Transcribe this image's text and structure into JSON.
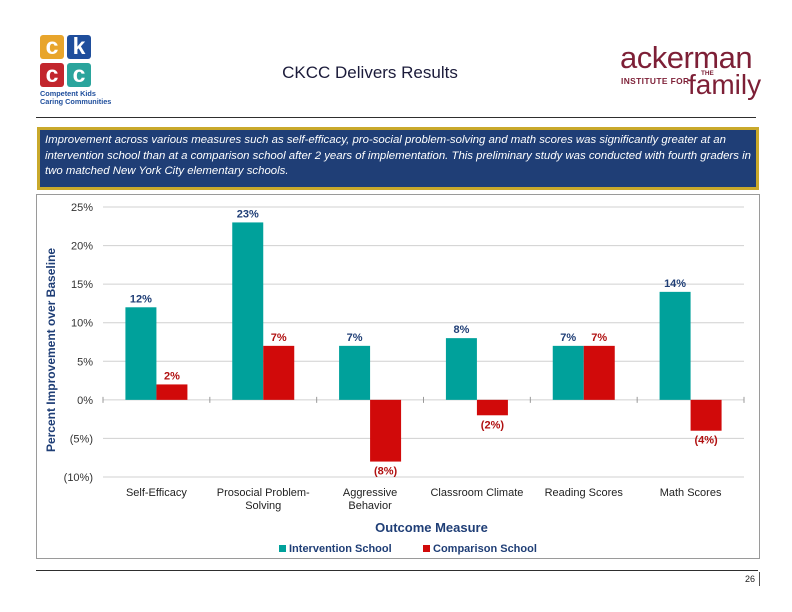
{
  "logo_left": {
    "tiles": [
      "c",
      "k",
      "c",
      "c"
    ],
    "tagline_line1": "Competent Kids",
    "tagline_line2": "Caring Communities",
    "colors": [
      "#e8a52c",
      "#1f4e9c",
      "#c2262d",
      "#2aa49c"
    ]
  },
  "title": "CKCC Delivers Results",
  "logo_right": {
    "word": "ackerman",
    "institute": "INSTITUTE FOR",
    "the": "THE",
    "family": "family",
    "color": "#7d1f36"
  },
  "intro": "Improvement across various measures such as self-efficacy, pro-social problem-solving and math scores was significantly greater at an intervention school than at a comparison school after 2 years of implementation.  This preliminary study  was conducted with fourth graders in two matched New York City elementary schools.",
  "chart_data": {
    "type": "bar",
    "categories": [
      "Self-Efficacy",
      "Prosocial Problem-Solving",
      "Aggressive Behavior",
      "Classroom Climate",
      "Reading Scores",
      "Math Scores"
    ],
    "category_lines": [
      [
        "Self-Efficacy"
      ],
      [
        "Prosocial Problem-",
        "Solving"
      ],
      [
        "Aggressive",
        "Behavior"
      ],
      [
        "Classroom Climate"
      ],
      [
        "Reading Scores"
      ],
      [
        "Math Scores"
      ]
    ],
    "series": [
      {
        "name": "Intervention School",
        "color": "#00a19b",
        "values": [
          12,
          23,
          7,
          8,
          7,
          14
        ],
        "labels": [
          "12%",
          "23%",
          "7%",
          "8%",
          "7%",
          "14%"
        ]
      },
      {
        "name": "Comparison School",
        "color": "#d10a0a",
        "values": [
          2,
          7,
          -8,
          -2,
          7,
          -4
        ],
        "labels": [
          "2%",
          "7%",
          "(8%)",
          "(2%)",
          "7%",
          "(4%)"
        ]
      }
    ],
    "ylim": [
      -10,
      25
    ],
    "yticks": [
      -10,
      -5,
      0,
      5,
      10,
      15,
      20,
      25
    ],
    "ytick_labels": [
      "(10%)",
      "(5%)",
      "0%",
      "5%",
      "10%",
      "15%",
      "20%",
      "25%"
    ],
    "xlabel": "Outcome Measure",
    "ylabel": "Percent Improvement over Baseline",
    "grid": true,
    "legend_position": "bottom",
    "label_colors": {
      "intervention": "#1f3e76",
      "comparison": "#b01010"
    }
  },
  "page_number": "26"
}
